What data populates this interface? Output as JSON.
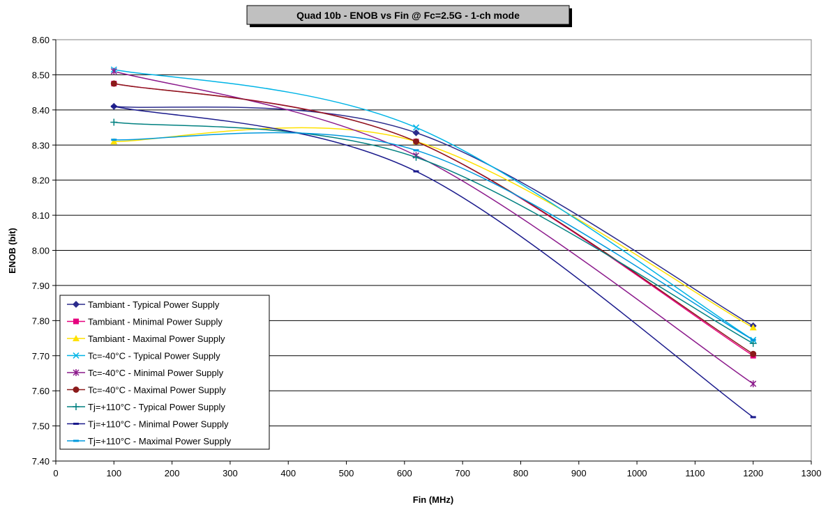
{
  "chart_data": {
    "type": "line",
    "title": "Quad 10b - ENOB vs Fin @ Fc=2.5G - 1-ch mode",
    "xlabel": "Fin (MHz)",
    "ylabel": "ENOB (bit)",
    "xlim": [
      0,
      1300
    ],
    "ylim": [
      7.4,
      8.6
    ],
    "xticks": [
      0,
      100,
      200,
      300,
      400,
      500,
      600,
      700,
      800,
      900,
      1000,
      1100,
      1200,
      1300
    ],
    "xtick_labels": [
      "0",
      "100",
      "200",
      "300",
      "400",
      "500",
      "600",
      "700",
      "800",
      "900",
      "1000",
      "1100",
      "1200",
      "1300"
    ],
    "yticks": [
      7.4,
      7.5,
      7.6,
      7.7,
      7.8,
      7.9,
      8.0,
      8.1,
      8.2,
      8.3,
      8.4,
      8.5,
      8.6
    ],
    "ytick_labels": [
      "7.40",
      "7.50",
      "7.60",
      "7.70",
      "7.80",
      "7.90",
      "8.00",
      "8.10",
      "8.20",
      "8.30",
      "8.40",
      "8.50",
      "8.60"
    ],
    "grid": "horizontal",
    "legend_position": "bottom-left",
    "x": [
      100,
      620,
      1200
    ],
    "series": [
      {
        "name": "Tambiant - Typical Power Supply",
        "values": [
          8.41,
          8.335,
          7.785
        ],
        "color": "#2b2b8c",
        "marker": "diamond"
      },
      {
        "name": "Tambiant - Minimal Power Supply",
        "values": [
          8.475,
          8.31,
          7.7
        ],
        "color": "#e6007e",
        "marker": "square"
      },
      {
        "name": "Tambiant - Maximal Power Supply",
        "values": [
          8.31,
          8.31,
          7.78
        ],
        "color": "#ffe100",
        "marker": "triangle"
      },
      {
        "name": "Tc=-40°C - Typical Power Supply",
        "values": [
          8.515,
          8.35,
          7.745
        ],
        "color": "#00b4e6",
        "marker": "x"
      },
      {
        "name": "Tc=-40°C - Minimal Power Supply",
        "values": [
          8.51,
          8.27,
          7.62
        ],
        "color": "#8c1a8c",
        "marker": "asterisk"
      },
      {
        "name": "Tc=-40°C - Maximal Power Supply",
        "values": [
          8.475,
          8.31,
          7.705
        ],
        "color": "#8b1a1a",
        "marker": "circle"
      },
      {
        "name": "Tj=+110°C - Typical Power Supply",
        "values": [
          8.365,
          8.265,
          7.735
        ],
        "color": "#008080",
        "marker": "plus"
      },
      {
        "name": "Tj=+110°C - Minimal Power Supply",
        "values": [
          8.41,
          8.225,
          7.525
        ],
        "color": "#1a1a8c",
        "marker": "dash"
      },
      {
        "name": "Tj=+110°C - Maximal Power Supply",
        "values": [
          8.315,
          8.285,
          7.745
        ],
        "color": "#0099dd",
        "marker": "dash"
      }
    ]
  }
}
